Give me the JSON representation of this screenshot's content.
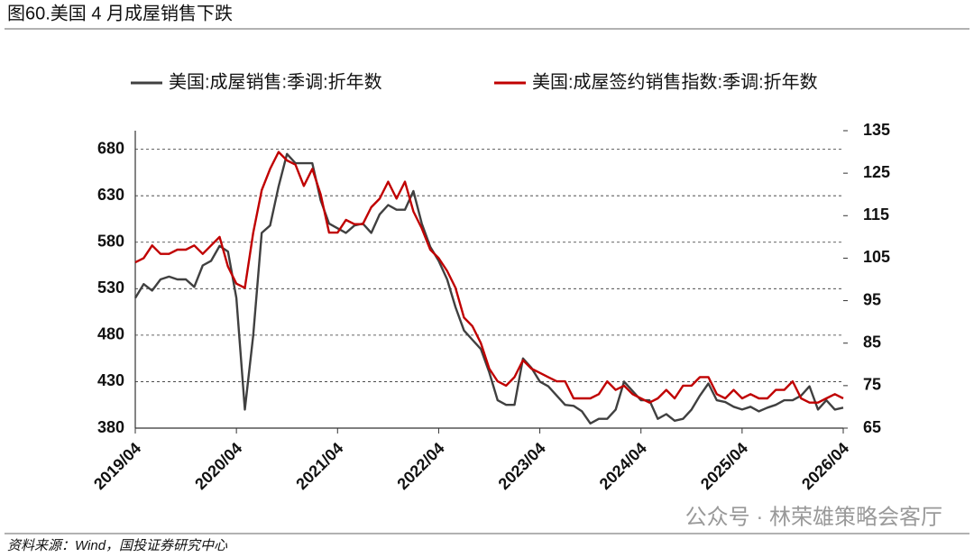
{
  "header": "图60.美国 4 月成屋销售下跌",
  "source": "资料来源：Wind，国投证券研究中心",
  "watermark": "公众号 · 林荣雄策略会客厅",
  "chart_data": {
    "type": "line",
    "x": [
      "2019/04",
      null,
      null,
      null,
      null,
      null,
      null,
      null,
      null,
      null,
      null,
      null,
      "2020/04",
      null,
      null,
      null,
      null,
      null,
      null,
      null,
      null,
      null,
      null,
      null,
      "2021/04",
      null,
      null,
      null,
      null,
      null,
      null,
      null,
      null,
      null,
      null,
      null,
      "2022/04",
      null,
      null,
      null,
      null,
      null,
      null,
      null,
      null,
      null,
      null,
      null,
      "2023/04",
      null,
      null,
      null,
      null,
      null,
      null,
      null,
      null,
      null,
      null,
      null,
      "2024/04",
      null,
      null,
      null,
      null,
      null,
      null,
      null,
      null,
      null,
      null,
      null,
      "2025/04",
      null,
      null,
      null,
      null,
      null,
      null,
      null,
      null,
      null,
      null,
      null,
      "2026/04"
    ],
    "series": [
      {
        "name": "美国:成屋销售:季调:折年数",
        "color": "#404040",
        "axis": "y",
        "values": [
          520,
          535,
          528,
          540,
          543,
          540,
          540,
          532,
          555,
          560,
          576,
          570,
          520,
          400,
          480,
          590,
          598,
          640,
          675,
          665,
          665,
          665,
          625,
          600,
          595,
          590,
          598,
          600,
          590,
          610,
          620,
          615,
          615,
          635,
          600,
          575,
          560,
          540,
          510,
          485,
          475,
          465,
          440,
          410,
          405,
          405,
          455,
          445,
          430,
          425,
          415,
          405,
          404,
          398,
          385,
          390,
          390,
          400,
          430,
          420,
          410,
          410,
          390,
          395,
          388,
          390,
          400,
          415,
          428,
          410,
          408,
          403,
          400,
          403,
          398,
          402,
          405,
          410,
          410,
          415,
          425,
          400,
          410,
          400,
          402
        ]
      },
      {
        "name": "美国:成屋签约销售指数:季调:折年数",
        "color": "#c00000",
        "axis": "y2",
        "values": [
          104,
          105,
          108,
          106,
          106,
          107,
          107,
          108,
          106,
          108,
          110,
          103,
          99,
          98,
          111,
          121,
          126,
          130,
          128,
          127,
          122,
          126,
          120,
          111,
          111,
          114,
          113,
          113,
          117,
          119,
          123,
          119,
          123,
          116,
          112,
          107,
          105,
          102,
          98,
          91,
          89,
          85,
          79,
          76,
          75,
          77,
          81,
          79,
          78,
          77,
          76,
          76,
          72,
          72,
          72,
          73,
          76,
          74,
          75,
          73,
          72,
          71,
          72,
          74,
          72,
          75,
          75,
          77,
          77,
          73,
          72,
          74,
          72,
          73,
          72,
          72,
          74,
          74,
          76,
          72,
          71,
          71,
          72,
          73,
          72
        ]
      }
    ],
    "ylim": [
      380,
      700
    ],
    "yticks": [
      380,
      430,
      480,
      530,
      580,
      630,
      680
    ],
    "y2lim": [
      65,
      135
    ],
    "y2ticks": [
      65,
      75,
      85,
      95,
      105,
      115,
      125,
      135
    ],
    "grid": true,
    "legend": "top"
  }
}
